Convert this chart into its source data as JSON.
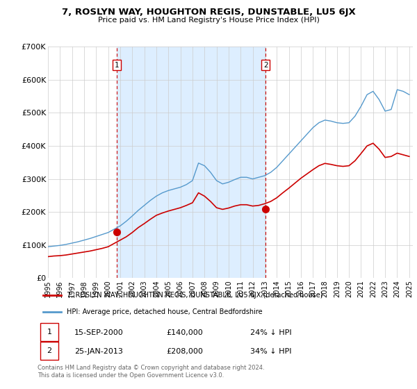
{
  "title": "7, ROSLYN WAY, HOUGHTON REGIS, DUNSTABLE, LU5 6JX",
  "subtitle": "Price paid vs. HM Land Registry's House Price Index (HPI)",
  "legend_line1": "7, ROSLYN WAY, HOUGHTON REGIS, DUNSTABLE, LU5 6JX (detached house)",
  "legend_line2": "HPI: Average price, detached house, Central Bedfordshire",
  "annotation1_date": "15-SEP-2000",
  "annotation1_price": "£140,000",
  "annotation1_hpi": "24% ↓ HPI",
  "annotation2_date": "25-JAN-2013",
  "annotation2_price": "£208,000",
  "annotation2_hpi": "34% ↓ HPI",
  "footer": "Contains HM Land Registry data © Crown copyright and database right 2024.\nThis data is licensed under the Open Government Licence v3.0.",
  "red_color": "#cc0000",
  "blue_color": "#5599cc",
  "shade_color": "#ddeeff",
  "vline_color": "#cc0000",
  "ylim": [
    0,
    700000
  ],
  "yticks": [
    0,
    100000,
    200000,
    300000,
    400000,
    500000,
    600000,
    700000
  ],
  "ytick_labels": [
    "£0",
    "£100K",
    "£200K",
    "£300K",
    "£400K",
    "£500K",
    "£600K",
    "£700K"
  ],
  "sale1_x": 2000.71,
  "sale1_y": 140000,
  "sale2_x": 2013.07,
  "sale2_y": 208000,
  "xmin": 1995.0,
  "xmax": 2025.3,
  "hpi_years": [
    1995.0,
    1995.5,
    1996.0,
    1996.5,
    1997.0,
    1997.5,
    1998.0,
    1998.5,
    1999.0,
    1999.5,
    2000.0,
    2000.5,
    2001.0,
    2001.5,
    2002.0,
    2002.5,
    2003.0,
    2003.5,
    2004.0,
    2004.5,
    2005.0,
    2005.5,
    2006.0,
    2006.5,
    2007.0,
    2007.5,
    2008.0,
    2008.5,
    2009.0,
    2009.5,
    2010.0,
    2010.5,
    2011.0,
    2011.5,
    2012.0,
    2012.5,
    2013.0,
    2013.5,
    2014.0,
    2014.5,
    2015.0,
    2015.5,
    2016.0,
    2016.5,
    2017.0,
    2017.5,
    2018.0,
    2018.5,
    2019.0,
    2019.5,
    2020.0,
    2020.5,
    2021.0,
    2021.5,
    2022.0,
    2022.5,
    2023.0,
    2023.5,
    2024.0,
    2024.5,
    2025.0
  ],
  "hpi_values": [
    95000,
    97000,
    99000,
    102000,
    106000,
    110000,
    115000,
    120000,
    126000,
    132000,
    138000,
    148000,
    158000,
    172000,
    188000,
    205000,
    220000,
    235000,
    248000,
    258000,
    265000,
    270000,
    275000,
    283000,
    295000,
    348000,
    340000,
    320000,
    295000,
    285000,
    290000,
    298000,
    305000,
    305000,
    300000,
    305000,
    310000,
    320000,
    335000,
    355000,
    375000,
    395000,
    415000,
    435000,
    455000,
    470000,
    478000,
    475000,
    470000,
    468000,
    470000,
    490000,
    520000,
    555000,
    565000,
    540000,
    505000,
    510000,
    570000,
    565000,
    555000
  ],
  "red_years": [
    1995.0,
    1995.5,
    1996.0,
    1996.5,
    1997.0,
    1997.5,
    1998.0,
    1998.5,
    1999.0,
    1999.5,
    2000.0,
    2000.5,
    2001.0,
    2001.5,
    2002.0,
    2002.5,
    2003.0,
    2003.5,
    2004.0,
    2004.5,
    2005.0,
    2005.5,
    2006.0,
    2006.5,
    2007.0,
    2007.5,
    2008.0,
    2008.5,
    2009.0,
    2009.5,
    2010.0,
    2010.5,
    2011.0,
    2011.5,
    2012.0,
    2012.5,
    2013.0,
    2013.5,
    2014.0,
    2014.5,
    2015.0,
    2015.5,
    2016.0,
    2016.5,
    2017.0,
    2017.5,
    2018.0,
    2018.5,
    2019.0,
    2019.5,
    2020.0,
    2020.5,
    2021.0,
    2021.5,
    2022.0,
    2022.5,
    2023.0,
    2023.5,
    2024.0,
    2024.5,
    2025.0
  ],
  "red_values": [
    65000,
    67000,
    68000,
    70000,
    73000,
    76000,
    79000,
    82000,
    86000,
    90000,
    95000,
    105000,
    115000,
    125000,
    138000,
    153000,
    165000,
    178000,
    190000,
    197000,
    203000,
    208000,
    213000,
    220000,
    228000,
    258000,
    248000,
    232000,
    213000,
    208000,
    212000,
    218000,
    222000,
    222000,
    218000,
    220000,
    225000,
    232000,
    243000,
    258000,
    272000,
    287000,
    302000,
    315000,
    328000,
    340000,
    347000,
    344000,
    340000,
    338000,
    340000,
    355000,
    377000,
    400000,
    408000,
    390000,
    365000,
    368000,
    378000,
    373000,
    368000
  ]
}
